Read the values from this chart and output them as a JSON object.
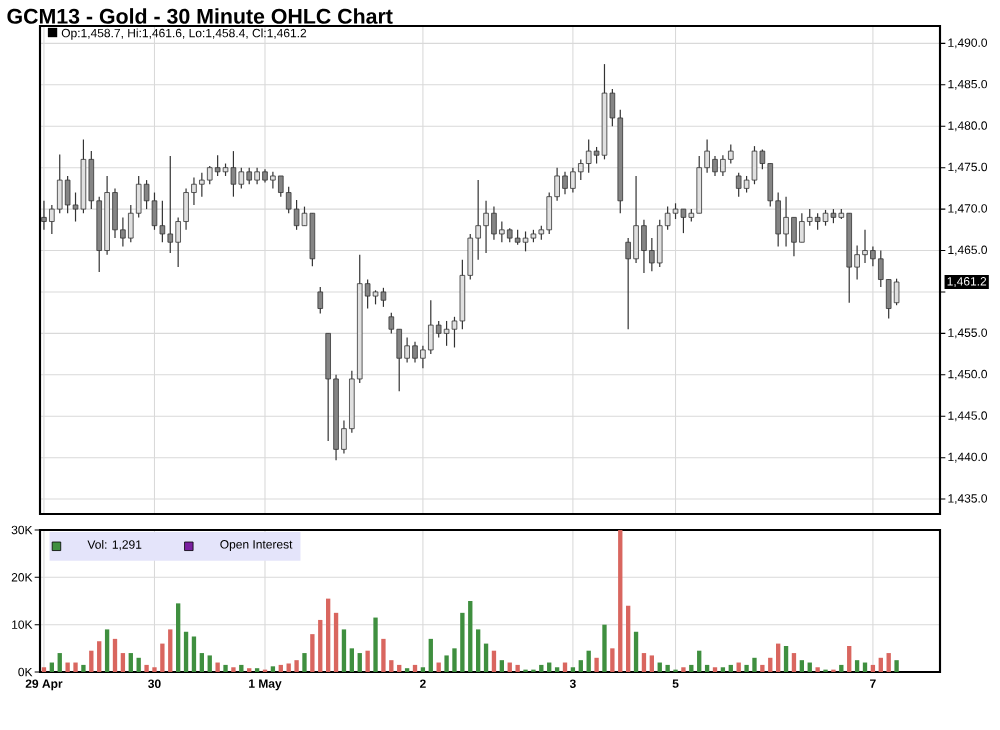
{
  "chart_data": [
    {
      "type": "candlestick",
      "title": "GCM13 - Gold - 30 Minute OHLC Chart",
      "color": "#333333",
      "categories": [
        null,
        null,
        null,
        null,
        null,
        null,
        null,
        null,
        null,
        null,
        null,
        null,
        null,
        null,
        null,
        null,
        null,
        null,
        null,
        null,
        null,
        null,
        null,
        null,
        null,
        null,
        null,
        null,
        null,
        null,
        null,
        null,
        null,
        null,
        null,
        null,
        null,
        null,
        null,
        null,
        null,
        null,
        null,
        null,
        null,
        null,
        null,
        null,
        null,
        null,
        null,
        null,
        null,
        null,
        null,
        null,
        null,
        null,
        null,
        null,
        null,
        null,
        null,
        null,
        null,
        null,
        null,
        null,
        null,
        null,
        null,
        null,
        null,
        null,
        null,
        null,
        null,
        null,
        null,
        null,
        null,
        null,
        null,
        null,
        null,
        null,
        null,
        null,
        null,
        null,
        null,
        null,
        null,
        null,
        null,
        null,
        null,
        null,
        null,
        null,
        null,
        null,
        null,
        null,
        null,
        null,
        null,
        null,
        null
      ],
      "ohlc": [
        [
          1469.0,
          1471.0,
          1467.5,
          1468.5
        ],
        [
          1468.5,
          1470.5,
          1467.0,
          1470.0
        ],
        [
          1470.0,
          1476.6,
          1469.5,
          1473.5
        ],
        [
          1473.5,
          1474.0,
          1469.5,
          1470.5
        ],
        [
          1470.5,
          1472.0,
          1468.5,
          1470.0
        ],
        [
          1470.0,
          1478.4,
          1469.5,
          1476.0
        ],
        [
          1476.0,
          1477.0,
          1470.0,
          1471.0
        ],
        [
          1471.0,
          1471.5,
          1462.4,
          1465.0
        ],
        [
          1465.0,
          1474.0,
          1464.5,
          1472.0
        ],
        [
          1472.0,
          1472.5,
          1466.5,
          1467.5
        ],
        [
          1467.5,
          1469.0,
          1465.5,
          1466.5
        ],
        [
          1466.5,
          1470.5,
          1466.0,
          1469.5
        ],
        [
          1469.5,
          1474.0,
          1469.0,
          1473.0
        ],
        [
          1473.0,
          1473.5,
          1470.0,
          1471.0
        ],
        [
          1471.0,
          1472.0,
          1467.5,
          1468.0
        ],
        [
          1468.0,
          1471.0,
          1466.0,
          1467.0
        ],
        [
          1467.0,
          1476.4,
          1464.7,
          1466.0
        ],
        [
          1466.0,
          1469.0,
          1463.0,
          1468.5
        ],
        [
          1468.5,
          1472.5,
          1467.5,
          1472.0
        ],
        [
          1472.0,
          1473.8,
          1470.5,
          1473.0
        ],
        [
          1473.0,
          1474.4,
          1471.5,
          1473.5
        ],
        [
          1473.5,
          1475.2,
          1473.0,
          1475.0
        ],
        [
          1475.0,
          1476.5,
          1474.0,
          1474.5
        ],
        [
          1474.5,
          1475.5,
          1474.0,
          1475.0
        ],
        [
          1475.0,
          1477.0,
          1471.5,
          1473.0
        ],
        [
          1473.0,
          1475.0,
          1472.5,
          1474.5
        ],
        [
          1474.5,
          1475.0,
          1473.0,
          1473.5
        ],
        [
          1473.5,
          1475.0,
          1473.0,
          1474.5
        ],
        [
          1474.5,
          1474.8,
          1473.2,
          1473.5
        ],
        [
          1473.5,
          1474.5,
          1472.5,
          1474.0
        ],
        [
          1474.0,
          1474.0,
          1471.5,
          1472.0
        ],
        [
          1472.0,
          1472.7,
          1469.5,
          1470.0
        ],
        [
          1470.0,
          1471.1,
          1467.5,
          1468.0
        ],
        [
          1468.0,
          1470.3,
          1468.0,
          1469.5
        ],
        [
          1469.5,
          1469.5,
          1463.1,
          1464.0
        ],
        [
          1460.0,
          1460.6,
          1457.4,
          1458.0
        ],
        [
          1455.0,
          1455.0,
          1442.0,
          1449.5
        ],
        [
          1449.5,
          1450.0,
          1439.7,
          1441.0
        ],
        [
          1441.0,
          1444.5,
          1440.5,
          1443.5
        ],
        [
          1443.5,
          1450.5,
          1443.0,
          1449.5
        ],
        [
          1449.5,
          1464.5,
          1449.0,
          1461.0
        ],
        [
          1461.0,
          1461.5,
          1458.0,
          1459.5
        ],
        [
          1459.5,
          1460.2,
          1458.5,
          1460.0
        ],
        [
          1460.0,
          1460.5,
          1458.2,
          1459.0
        ],
        [
          1457.0,
          1457.5,
          1455.0,
          1455.5
        ],
        [
          1455.5,
          1455.5,
          1448.0,
          1452.0
        ],
        [
          1452.0,
          1454.5,
          1451.5,
          1453.5
        ],
        [
          1453.5,
          1454.0,
          1451.5,
          1452.0
        ],
        [
          1452.0,
          1453.5,
          1450.8,
          1453.0
        ],
        [
          1453.0,
          1459.0,
          1452.5,
          1456.0
        ],
        [
          1456.0,
          1456.5,
          1454.5,
          1455.0
        ],
        [
          1455.0,
          1456.5,
          1453.5,
          1455.5
        ],
        [
          1455.5,
          1457.0,
          1453.3,
          1456.5
        ],
        [
          1456.5,
          1463.9,
          1455.5,
          1462.0
        ],
        [
          1462.0,
          1467.0,
          1461.5,
          1466.5
        ],
        [
          1466.5,
          1473.5,
          1463.9,
          1468.0
        ],
        [
          1468.0,
          1471.0,
          1464.7,
          1469.5
        ],
        [
          1469.5,
          1470.3,
          1466.3,
          1467.0
        ],
        [
          1467.0,
          1468.5,
          1466.0,
          1467.5
        ],
        [
          1467.5,
          1467.7,
          1466.0,
          1466.5
        ],
        [
          1466.5,
          1467.5,
          1465.7,
          1466.0
        ],
        [
          1466.0,
          1467.3,
          1464.9,
          1466.5
        ],
        [
          1466.5,
          1467.5,
          1466.0,
          1467.0
        ],
        [
          1467.0,
          1468.0,
          1466.3,
          1467.5
        ],
        [
          1467.5,
          1472.0,
          1467.0,
          1471.5
        ],
        [
          1471.5,
          1475.0,
          1471.0,
          1474.0
        ],
        [
          1474.0,
          1474.5,
          1471.8,
          1472.5
        ],
        [
          1472.5,
          1475.0,
          1472.0,
          1474.5
        ],
        [
          1474.5,
          1476.0,
          1473.5,
          1475.5
        ],
        [
          1475.5,
          1478.4,
          1474.4,
          1477.0
        ],
        [
          1477.0,
          1477.5,
          1475.5,
          1476.5
        ],
        [
          1476.5,
          1487.5,
          1476.0,
          1484.0
        ],
        [
          1484.0,
          1484.5,
          1480.0,
          1481.0
        ],
        [
          1481.0,
          1482.0,
          1469.5,
          1471.0
        ],
        [
          1466.0,
          1466.5,
          1455.5,
          1464.0
        ],
        [
          1464.0,
          1474.0,
          1463.5,
          1468.0
        ],
        [
          1468.0,
          1468.7,
          1462.3,
          1465.0
        ],
        [
          1465.0,
          1466.5,
          1462.5,
          1463.5
        ],
        [
          1463.5,
          1468.7,
          1463.0,
          1468.0
        ],
        [
          1468.0,
          1470.3,
          1467.5,
          1469.5
        ],
        [
          1469.5,
          1470.7,
          1468.8,
          1470.0
        ],
        [
          1470.0,
          1470.0,
          1467.1,
          1469.0
        ],
        [
          1469.0,
          1470.0,
          1468.5,
          1469.5
        ],
        [
          1469.5,
          1476.4,
          1469.5,
          1475.0
        ],
        [
          1475.0,
          1478.4,
          1474.4,
          1477.0
        ],
        [
          1476.0,
          1476.4,
          1474.0,
          1474.5
        ],
        [
          1474.5,
          1476.5,
          1474.0,
          1476.0
        ],
        [
          1476.0,
          1477.8,
          1475.5,
          1477.0
        ],
        [
          1474.0,
          1474.4,
          1471.5,
          1472.5
        ],
        [
          1472.5,
          1474.0,
          1472.0,
          1473.5
        ],
        [
          1473.5,
          1477.6,
          1473.0,
          1477.0
        ],
        [
          1477.0,
          1477.2,
          1474.8,
          1475.5
        ],
        [
          1475.5,
          1475.5,
          1470.3,
          1471.0
        ],
        [
          1471.0,
          1472.0,
          1465.5,
          1467.0
        ],
        [
          1467.0,
          1471.5,
          1465.5,
          1469.0
        ],
        [
          1469.0,
          1469.0,
          1464.3,
          1466.0
        ],
        [
          1466.0,
          1469.5,
          1466.0,
          1468.5
        ],
        [
          1468.5,
          1470.0,
          1468.0,
          1469.0
        ],
        [
          1469.0,
          1469.5,
          1467.5,
          1468.5
        ],
        [
          1468.5,
          1469.9,
          1468.0,
          1469.5
        ],
        [
          1469.5,
          1470.0,
          1468.3,
          1469.0
        ],
        [
          1469.0,
          1470.0,
          1468.8,
          1469.5
        ],
        [
          1469.5,
          1469.5,
          1458.7,
          1463.0
        ],
        [
          1463.0,
          1465.6,
          1461.5,
          1464.5
        ],
        [
          1464.5,
          1467.5,
          1463.5,
          1465.0
        ],
        [
          1465.0,
          1465.5,
          1463.1,
          1464.0
        ],
        [
          1464.0,
          1465.0,
          1460.6,
          1461.5
        ],
        [
          1461.5,
          1461.5,
          1456.8,
          1458.0
        ],
        [
          1458.7,
          1461.6,
          1458.4,
          1461.2
        ]
      ],
      "ylim": [
        1433.2,
        1492.1
      ],
      "yticks": [
        {
          "value": 1435,
          "label": "1,435.0"
        },
        {
          "value": 1440,
          "label": "1,440.0"
        },
        {
          "value": 1445,
          "label": "1,445.0"
        },
        {
          "value": 1450,
          "label": "1,450.0"
        },
        {
          "value": 1455,
          "label": "1,455.0"
        },
        {
          "value": 1460,
          "label": null
        },
        {
          "value": 1465,
          "label": "1,465.0"
        },
        {
          "value": 1470,
          "label": "1,470.0"
        },
        {
          "value": 1475,
          "label": "1,475.0"
        },
        {
          "value": 1480,
          "label": "1,480.0"
        },
        {
          "value": 1485,
          "label": "1,485.0"
        },
        {
          "value": 1490,
          "label": "1,490.0"
        }
      ],
      "grid": true,
      "annotations": [
        "Op:1,458.7, Hi:1,461.6, Lo:1,458.4, Cl:1,461.2",
        "1,461.2"
      ]
    },
    {
      "type": "bar",
      "categories": [
        "29 Apr",
        null,
        null,
        null,
        null,
        null,
        null,
        null,
        null,
        null,
        null,
        null,
        null,
        null,
        "30",
        null,
        null,
        null,
        null,
        null,
        null,
        null,
        null,
        null,
        null,
        null,
        null,
        null,
        "1 May",
        null,
        null,
        null,
        null,
        null,
        null,
        null,
        null,
        null,
        null,
        null,
        null,
        null,
        null,
        null,
        null,
        null,
        null,
        null,
        "2",
        null,
        null,
        null,
        null,
        null,
        null,
        null,
        null,
        null,
        null,
        null,
        null,
        null,
        null,
        null,
        null,
        null,
        null,
        "3",
        null,
        null,
        null,
        null,
        null,
        null,
        null,
        null,
        null,
        null,
        null,
        null,
        "5",
        null,
        null,
        null,
        null,
        null,
        null,
        null,
        null,
        null,
        null,
        null,
        null,
        null,
        null,
        null,
        null,
        null,
        null,
        null,
        null,
        null,
        null,
        null,
        null,
        "7",
        null,
        null,
        null
      ],
      "series": [
        {
          "name": "Vol: 1,291",
          "color": "#3f8f3f",
          "values": [
            1000,
            2000,
            4000,
            2000,
            2000,
            1500,
            4500,
            6500,
            9000,
            7000,
            4000,
            4000,
            3000,
            1500,
            1000,
            6000,
            9000,
            14500,
            8500,
            7500,
            4000,
            3500,
            2000,
            1500,
            1000,
            1500,
            800,
            800,
            500,
            1200,
            1500,
            1800,
            2500,
            4000,
            8000,
            11000,
            15500,
            12500,
            9000,
            5000,
            4000,
            4500,
            11500,
            7000,
            2500,
            1500,
            800,
            1500,
            1000,
            7000,
            2000,
            3500,
            5000,
            12500,
            15000,
            9000,
            6000,
            4500,
            2500,
            2000,
            1500,
            500,
            500,
            1500,
            2000,
            1000,
            2000,
            1000,
            2500,
            4500,
            3000,
            10000,
            5000,
            30000,
            14000,
            8500,
            4000,
            3500,
            2000,
            1500,
            500,
            1000,
            1500,
            4500,
            1500,
            1000,
            1000,
            1500,
            2000,
            1500,
            3000,
            1500,
            3000,
            6000,
            5500,
            4000,
            2500,
            2000,
            1000,
            500,
            500,
            1500,
            5500,
            2500,
            2000,
            1500,
            3000,
            4000,
            2500
          ],
          "colors": [
            "#d9665f",
            "#3f8f3f",
            "#3f8f3f",
            "#d9665f",
            "#d9665f",
            "#3f8f3f",
            "#d9665f",
            "#d9665f",
            "#3f8f3f",
            "#d9665f",
            "#d9665f",
            "#3f8f3f",
            "#3f8f3f",
            "#d9665f",
            "#d9665f",
            "#d9665f",
            "#d9665f",
            "#3f8f3f",
            "#3f8f3f",
            "#3f8f3f",
            "#3f8f3f",
            "#3f8f3f",
            "#d9665f",
            "#3f8f3f",
            "#d9665f",
            "#3f8f3f",
            "#d9665f",
            "#3f8f3f",
            "#d9665f",
            "#3f8f3f",
            "#d9665f",
            "#d9665f",
            "#d9665f",
            "#3f8f3f",
            "#d9665f",
            "#d9665f",
            "#d9665f",
            "#d9665f",
            "#3f8f3f",
            "#3f8f3f",
            "#3f8f3f",
            "#d9665f",
            "#3f8f3f",
            "#d9665f",
            "#d9665f",
            "#d9665f",
            "#3f8f3f",
            "#d9665f",
            "#3f8f3f",
            "#3f8f3f",
            "#d9665f",
            "#3f8f3f",
            "#3f8f3f",
            "#3f8f3f",
            "#3f8f3f",
            "#3f8f3f",
            "#3f8f3f",
            "#d9665f",
            "#3f8f3f",
            "#d9665f",
            "#d9665f",
            "#3f8f3f",
            "#3f8f3f",
            "#3f8f3f",
            "#3f8f3f",
            "#3f8f3f",
            "#d9665f",
            "#3f8f3f",
            "#3f8f3f",
            "#3f8f3f",
            "#d9665f",
            "#3f8f3f",
            "#d9665f",
            "#d9665f",
            "#d9665f",
            "#3f8f3f",
            "#d9665f",
            "#d9665f",
            "#3f8f3f",
            "#3f8f3f",
            "#3f8f3f",
            "#d9665f",
            "#3f8f3f",
            "#3f8f3f",
            "#3f8f3f",
            "#d9665f",
            "#3f8f3f",
            "#3f8f3f",
            "#d9665f",
            "#3f8f3f",
            "#3f8f3f",
            "#d9665f",
            "#d9665f",
            "#d9665f",
            "#3f8f3f",
            "#d9665f",
            "#3f8f3f",
            "#3f8f3f",
            "#d9665f",
            "#3f8f3f",
            "#d9665f",
            "#3f8f3f",
            "#d9665f",
            "#3f8f3f",
            "#3f8f3f",
            "#d9665f",
            "#d9665f",
            "#d9665f",
            "#3f8f3f"
          ]
        },
        {
          "name": "Open Interest",
          "color": "#7a1fa0",
          "values": [
            null,
            null,
            null,
            null,
            null,
            null,
            null,
            null,
            null,
            null,
            null,
            null,
            null,
            null,
            null,
            null,
            null,
            null,
            null,
            null,
            null,
            null,
            null,
            null,
            null,
            null,
            null,
            null,
            null,
            null,
            null,
            null,
            null,
            null,
            null,
            null,
            null,
            null,
            null,
            null,
            null,
            null,
            null,
            null,
            null,
            null,
            null,
            null,
            null,
            null,
            null,
            null,
            null,
            null,
            null,
            null,
            null,
            null,
            null,
            null,
            null,
            null,
            null,
            null,
            null,
            null,
            null,
            null,
            null,
            null,
            null,
            null,
            null,
            null,
            null,
            null,
            null,
            null,
            null,
            null,
            null,
            null,
            null,
            null,
            null,
            null,
            null,
            null,
            null,
            null,
            null,
            null,
            null,
            null,
            null,
            null,
            null,
            null,
            null,
            null,
            null,
            null,
            null,
            null,
            null,
            null,
            null,
            null,
            null
          ]
        }
      ],
      "ylim": [
        0,
        30000
      ],
      "yticks": [
        {
          "value": 0,
          "label": "0K"
        },
        {
          "value": 10000,
          "label": "10K"
        },
        {
          "value": 20000,
          "label": "20K"
        },
        {
          "value": 30000,
          "label": "30K"
        }
      ],
      "grid": true,
      "legend": "top left"
    }
  ]
}
